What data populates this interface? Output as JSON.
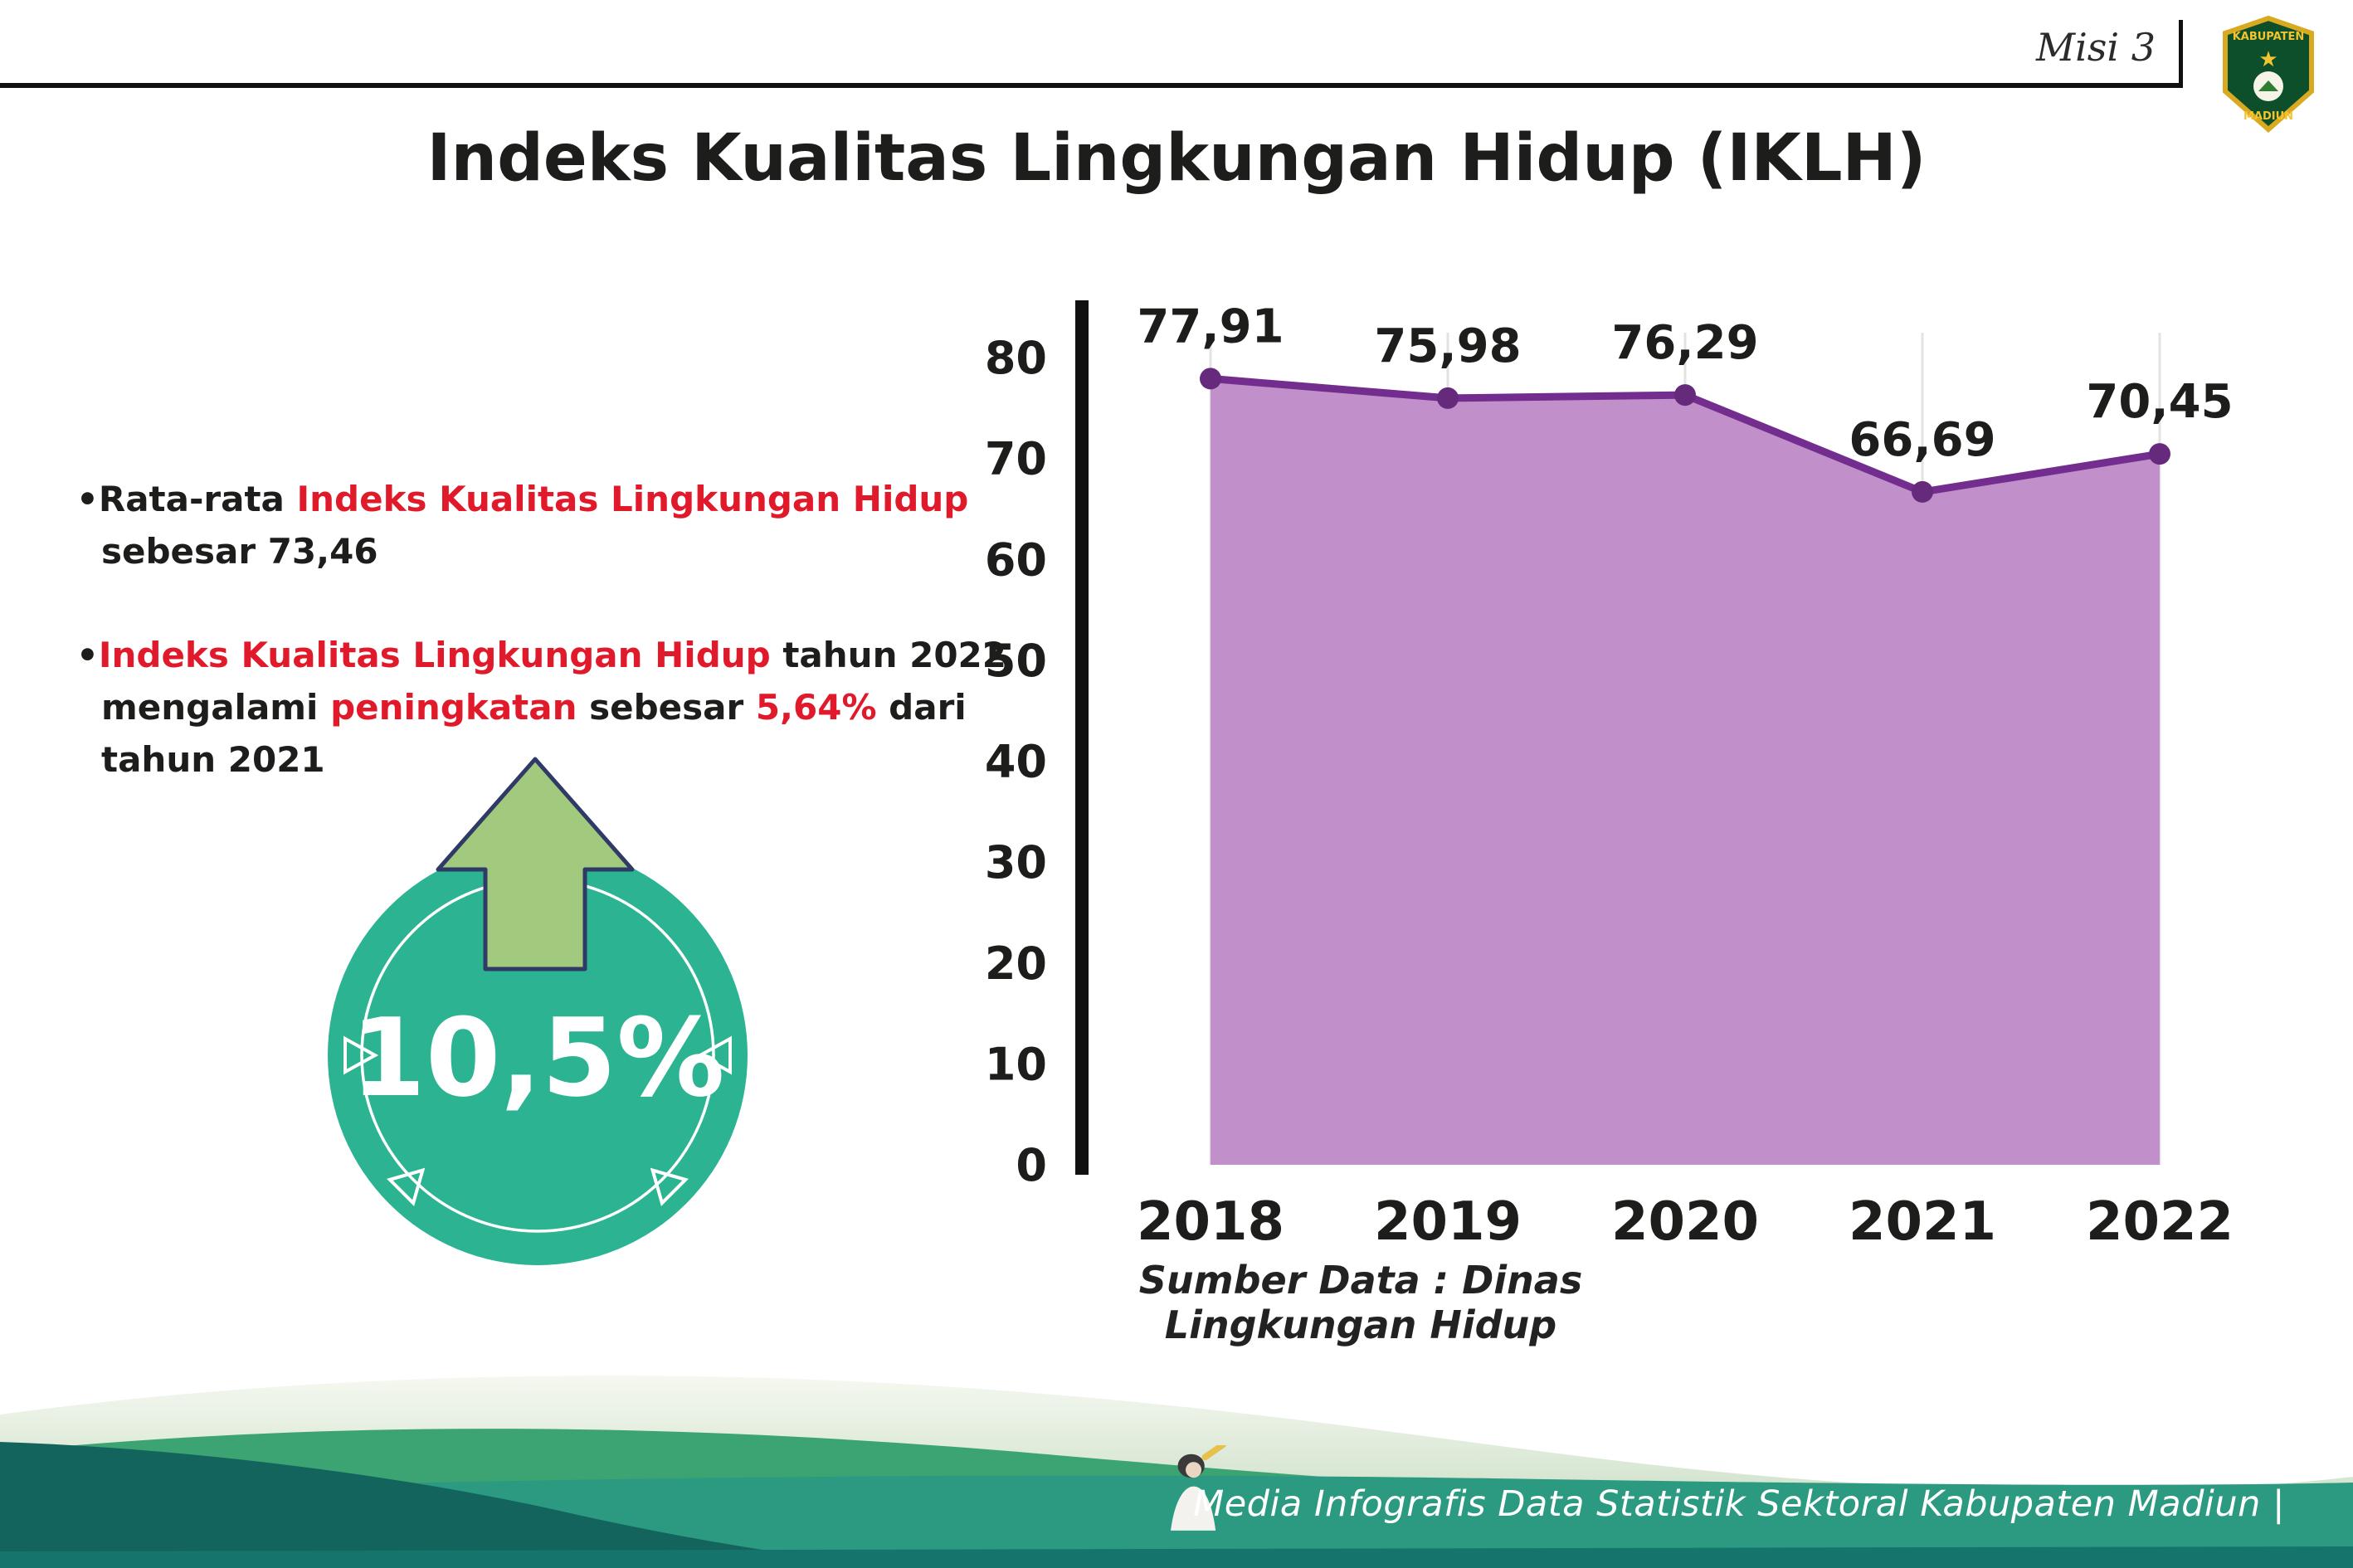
{
  "header": {
    "misi_label": "Misi 3",
    "title": "Indeks Kualitas Lingkungan Hidup (IKLH)"
  },
  "logo": {
    "top_text": "KABUPATEN",
    "bottom_text": "MADIUN"
  },
  "bullets": [
    {
      "segments": [
        {
          "text": "Rata-rata ",
          "style": "dark"
        },
        {
          "text": "Indeks Kualitas Lingkungan Hidup",
          "style": "red"
        },
        {
          "text": " sebesar 73,46",
          "style": "dark"
        }
      ]
    },
    {
      "segments": [
        {
          "text": "Indeks Kualitas Lingkungan Hidup",
          "style": "red"
        },
        {
          "text": " tahun 2022 mengalami ",
          "style": "dark"
        },
        {
          "text": "peningkatan",
          "style": "red"
        },
        {
          "text": " sebesar ",
          "style": "dark"
        },
        {
          "text": "5,64%",
          "style": "red"
        },
        {
          "text": " dari tahun 2021",
          "style": "dark"
        }
      ]
    }
  ],
  "highlight_badge": {
    "value": "10,5%"
  },
  "chart_data": {
    "type": "area",
    "title": "Indeks Kualitas Lingkungan Hidup (IKLH)",
    "categories": [
      "2018",
      "2019",
      "2020",
      "2021",
      "2022"
    ],
    "values": [
      77.91,
      75.98,
      76.29,
      66.69,
      70.45
    ],
    "value_labels": [
      "77,91",
      "75,98",
      "76,29",
      "66,69",
      "70,45"
    ],
    "xlabel": "",
    "ylabel": "",
    "ylim": [
      0,
      80
    ],
    "yticks": [
      0,
      10,
      20,
      30,
      40,
      50,
      60,
      70,
      80
    ],
    "legend": "none",
    "grid": "faint vertical lines at each year",
    "source_note": "Sumber Data : Dinas Lingkungan Hidup"
  },
  "footer": {
    "credit": "Media Infografis Data Statistik Sektoral Kabupaten Madiun |"
  },
  "colors": {
    "accent_red": "#e11a2b",
    "teal_badge": "#2bb392",
    "arrow_green": "#a2ca7f",
    "arrow_outline": "#2f3b66",
    "area_fill": "#c18fca",
    "line_purple": "#722d8e",
    "point_purple": "#662a7d",
    "grid_gray": "#e3e3e3",
    "axis_black": "#111111",
    "footer_dark_teal": "#14645e",
    "footer_green": "#3ca473",
    "footer_teal_band": "#2b9a81",
    "footer_bottom_strip": "#15746b",
    "text_dark": "#1d1d1b"
  }
}
